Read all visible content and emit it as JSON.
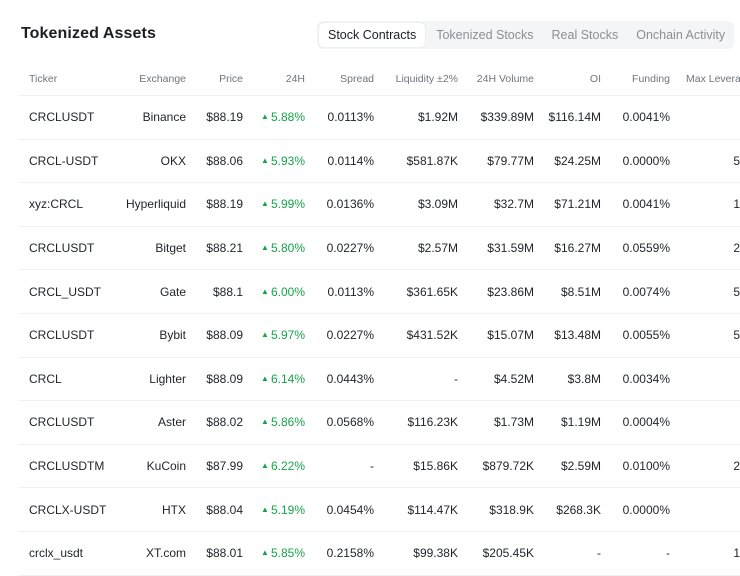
{
  "title": "Tokenized Assets",
  "tabs": [
    {
      "label": "Stock Contracts",
      "active": true
    },
    {
      "label": "Tokenized Stocks",
      "active": false
    },
    {
      "label": "Real Stocks",
      "active": false
    },
    {
      "label": "Onchain Activity",
      "active": false
    }
  ],
  "columns": {
    "ticker": "Ticker",
    "exchange": "Exchange",
    "price": "Price",
    "change": "24H",
    "spread": "Spread",
    "liquidity": "Liquidity ±2%",
    "volume": "24H Volume",
    "oi": "OI",
    "funding": "Funding",
    "leverage": "Max Levera"
  },
  "rows": [
    {
      "ticker": "CRCLUSDT",
      "exchange": "Binance",
      "price": "$88.19",
      "change": "5.88%",
      "spread": "0.0113%",
      "liquidity": "$1.92M",
      "volume": "$339.89M",
      "oi": "$116.14M",
      "funding": "0.0041%",
      "leverage": ""
    },
    {
      "ticker": "CRCL-USDT",
      "exchange": "OKX",
      "price": "$88.06",
      "change": "5.93%",
      "spread": "0.0114%",
      "liquidity": "$581.87K",
      "volume": "$79.77M",
      "oi": "$24.25M",
      "funding": "0.0000%",
      "leverage": "5"
    },
    {
      "ticker": "xyz:CRCL",
      "exchange": "Hyperliquid",
      "price": "$88.19",
      "change": "5.99%",
      "spread": "0.0136%",
      "liquidity": "$3.09M",
      "volume": "$32.7M",
      "oi": "$71.21M",
      "funding": "0.0041%",
      "leverage": "1"
    },
    {
      "ticker": "CRCLUSDT",
      "exchange": "Bitget",
      "price": "$88.21",
      "change": "5.80%",
      "spread": "0.0227%",
      "liquidity": "$2.57M",
      "volume": "$31.59M",
      "oi": "$16.27M",
      "funding": "0.0559%",
      "leverage": "2"
    },
    {
      "ticker": "CRCL_USDT",
      "exchange": "Gate",
      "price": "$88.1",
      "change": "6.00%",
      "spread": "0.0113%",
      "liquidity": "$361.65K",
      "volume": "$23.86M",
      "oi": "$8.51M",
      "funding": "0.0074%",
      "leverage": "5"
    },
    {
      "ticker": "CRCLUSDT",
      "exchange": "Bybit",
      "price": "$88.09",
      "change": "5.97%",
      "spread": "0.0227%",
      "liquidity": "$431.52K",
      "volume": "$15.07M",
      "oi": "$13.48M",
      "funding": "0.0055%",
      "leverage": "5"
    },
    {
      "ticker": "CRCL",
      "exchange": "Lighter",
      "price": "$88.09",
      "change": "6.14%",
      "spread": "0.0443%",
      "liquidity": "-",
      "volume": "$4.52M",
      "oi": "$3.8M",
      "funding": "0.0034%",
      "leverage": ""
    },
    {
      "ticker": "CRCLUSDT",
      "exchange": "Aster",
      "price": "$88.02",
      "change": "5.86%",
      "spread": "0.0568%",
      "liquidity": "$116.23K",
      "volume": "$1.73M",
      "oi": "$1.19M",
      "funding": "0.0004%",
      "leverage": ""
    },
    {
      "ticker": "CRCLUSDTM",
      "exchange": "KuCoin",
      "price": "$87.99",
      "change": "6.22%",
      "spread": "-",
      "liquidity": "$15.86K",
      "volume": "$879.72K",
      "oi": "$2.59M",
      "funding": "0.0100%",
      "leverage": "2"
    },
    {
      "ticker": "CRCLX-USDT",
      "exchange": "HTX",
      "price": "$88.04",
      "change": "5.19%",
      "spread": "0.0454%",
      "liquidity": "$114.47K",
      "volume": "$318.9K",
      "oi": "$268.3K",
      "funding": "0.0000%",
      "leverage": ""
    },
    {
      "ticker": "crclx_usdt",
      "exchange": "XT.com",
      "price": "$88.01",
      "change": "5.85%",
      "spread": "0.2158%",
      "liquidity": "$99.38K",
      "volume": "$205.45K",
      "oi": "-",
      "funding": "-",
      "leverage": "1"
    }
  ],
  "colors": {
    "up": "#16a34a",
    "accent_text": "#1b1f24"
  },
  "icons": {
    "up_arrow": "triangle-up-icon"
  }
}
